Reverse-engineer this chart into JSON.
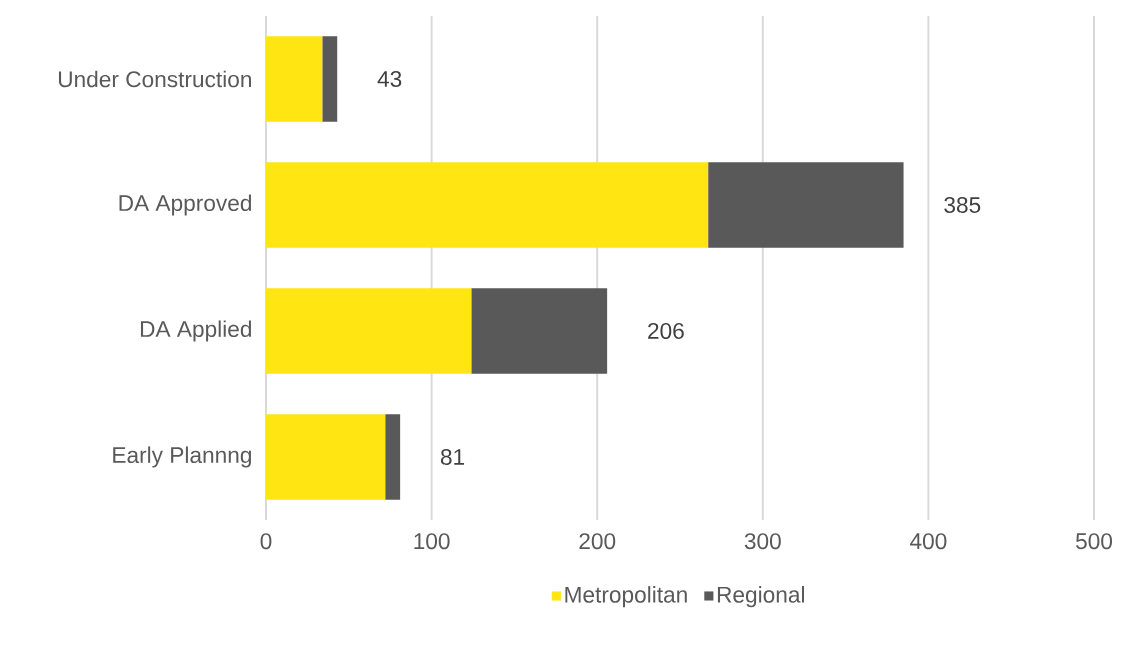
{
  "chart_data": {
    "type": "bar",
    "orientation": "horizontal",
    "stacked": true,
    "categories": [
      "Under Construction",
      "DA Approved",
      "DA Applied",
      "Early Plannng"
    ],
    "series": [
      {
        "name": "Metropolitan",
        "color": "#ffe512",
        "values": [
          34,
          267,
          124,
          72
        ]
      },
      {
        "name": "Regional",
        "color": "#595959",
        "values": [
          9,
          118,
          82,
          9
        ]
      }
    ],
    "totals": [
      "43",
      "385",
      "206",
      "81"
    ],
    "xlim": [
      0,
      500
    ],
    "xticks": [
      0,
      100,
      200,
      300,
      400,
      500
    ],
    "grid": "x",
    "legend": "bottom"
  }
}
